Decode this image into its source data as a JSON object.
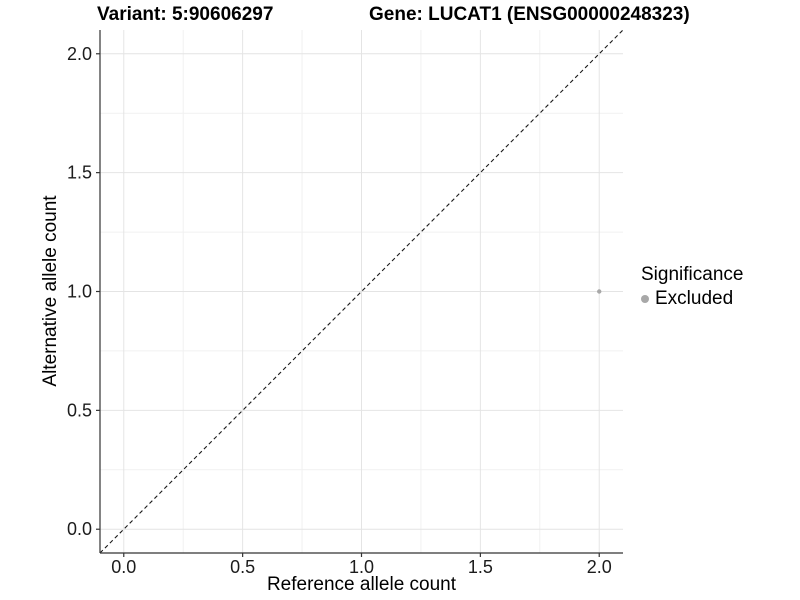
{
  "chart_data": {
    "type": "scatter",
    "title_left": "Variant: 5:90606297",
    "title_right": "Gene: LUCAT1 (ENSG00000248323)",
    "xlabel": "Reference allele count",
    "ylabel": "Alternative allele count",
    "xlim": [
      -0.1,
      2.1
    ],
    "ylim": [
      -0.1,
      2.1
    ],
    "x_major_ticks": [
      0,
      0.5,
      1,
      1.5,
      2
    ],
    "x_tick_labels": [
      "0.0",
      "0.5",
      "1.0",
      "1.5",
      "2.0"
    ],
    "x_minor_ticks": [
      0.25,
      0.75,
      1.25,
      1.75
    ],
    "y_major_ticks": [
      0,
      0.5,
      1,
      1.5,
      2
    ],
    "y_tick_labels": [
      "0.0",
      "0.5",
      "1.0",
      "1.5",
      "2.0"
    ],
    "y_minor_ticks": [
      0.25,
      0.75,
      1.25,
      1.75
    ],
    "grid": true,
    "legend_position": "right",
    "reference_line": {
      "slope": 1,
      "intercept": 0,
      "style": "dashed",
      "color": "#1a1a1a"
    },
    "series": [
      {
        "name": "Excluded",
        "color": "#a8a8a8",
        "points": [
          {
            "x": 2.0,
            "y": 1.0
          }
        ]
      }
    ],
    "legend": {
      "title": "Significance",
      "items": [
        {
          "label": "Excluded",
          "color": "#a8a8a8",
          "marker": "circle"
        }
      ]
    },
    "colors": {
      "background": "#ffffff",
      "grid_major": "#e4e4e4",
      "grid_minor": "#f1f1f1",
      "axis_line": "#333333",
      "tick": "#333333",
      "tick_label": "#1c1c1c",
      "text": "#000000"
    },
    "point_radius": 2.2,
    "legend_dot_radius": 4
  }
}
